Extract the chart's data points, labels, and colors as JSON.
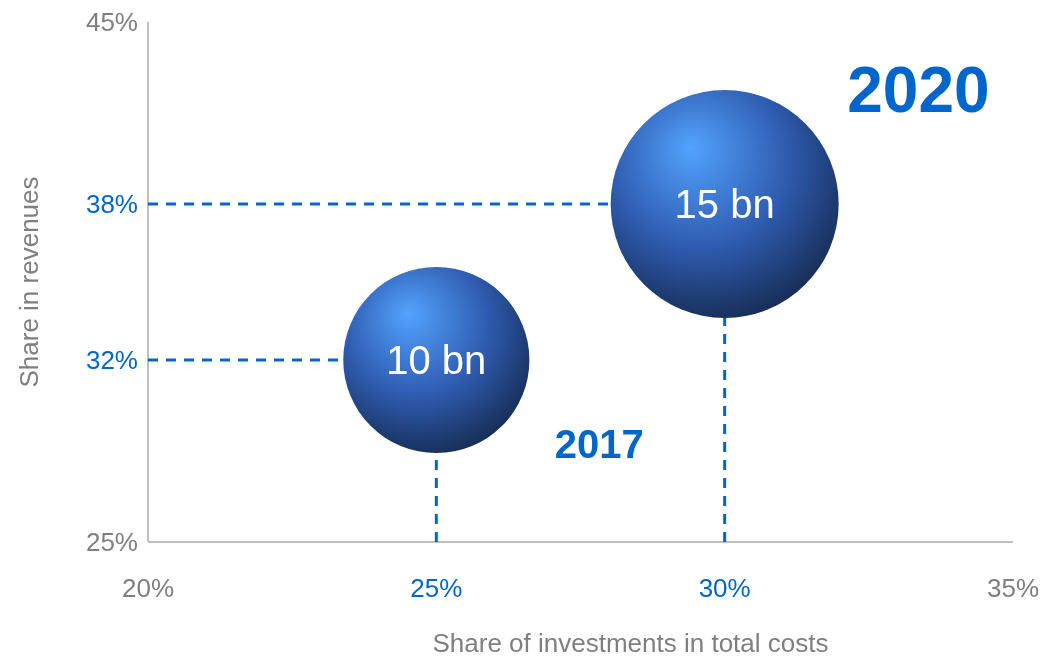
{
  "chart_data": {
    "type": "bubble",
    "xlabel": "Share of investments in total costs",
    "ylabel": "Share in revenues",
    "xlim": [
      20,
      35
    ],
    "xticks": [
      {
        "value": 20,
        "label": "20%"
      },
      {
        "value": 25,
        "label": "25%"
      },
      {
        "value": 30,
        "label": "30%"
      },
      {
        "value": 35,
        "label": "35%"
      }
    ],
    "ylim": [
      25,
      45
    ],
    "yticks": [
      {
        "value": 25,
        "label": "25%"
      },
      {
        "value": 32,
        "label": "32%"
      },
      {
        "value": 38,
        "label": "38%"
      },
      {
        "value": 45,
        "label": "45%"
      }
    ],
    "series": [
      {
        "color": "#2f5cb0",
        "x": [
          25,
          30
        ],
        "values": [
          32,
          38
        ],
        "sizes": [
          10,
          15
        ],
        "value_labels": [
          "10 bn",
          "15 bn"
        ]
      }
    ],
    "ref_lines": [
      {
        "axis": "x",
        "value": 25,
        "color": "#0066cc",
        "line_style": "dashed"
      },
      {
        "axis": "x",
        "value": 30,
        "color": "#0066cc",
        "line_style": "dashed"
      },
      {
        "axis": "y",
        "value": 32,
        "color": "#0066cc",
        "line_style": "dashed"
      },
      {
        "axis": "y",
        "value": 38,
        "color": "#0066cc",
        "line_style": "dashed"
      }
    ],
    "annotations": [
      "2017",
      "2020"
    ],
    "grid": false
  }
}
